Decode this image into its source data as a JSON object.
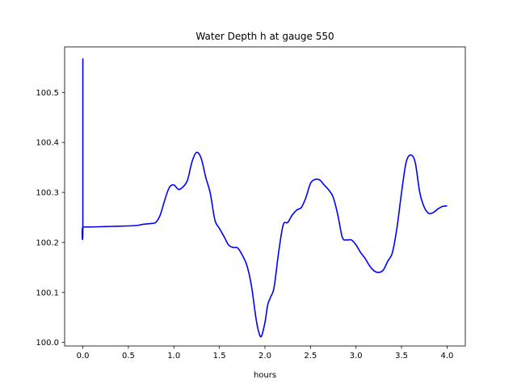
{
  "chart_data": {
    "type": "line",
    "title": "Water Depth h at gauge 550",
    "xlabel": "hours",
    "ylabel": "",
    "xlim": [
      -0.2,
      4.2
    ],
    "ylim": [
      99.993,
      100.591
    ],
    "xticks": [
      0.0,
      0.5,
      1.0,
      1.5,
      2.0,
      2.5,
      3.0,
      3.5,
      4.0
    ],
    "xtick_labels": [
      "0.0",
      "0.5",
      "1.0",
      "1.5",
      "2.0",
      "2.5",
      "3.0",
      "3.5",
      "4.0"
    ],
    "yticks": [
      100.0,
      100.1,
      100.2,
      100.3,
      100.4,
      100.5
    ],
    "ytick_labels": [
      "100.0",
      "100.1",
      "100.2",
      "100.3",
      "100.4",
      "100.5"
    ],
    "grid": false,
    "series": [
      {
        "color": "#0000ff",
        "x": [
          0.0,
          0.0,
          0.0,
          0.1,
          0.3,
          0.5,
          0.6,
          0.65,
          0.7,
          0.75,
          0.8,
          0.85,
          0.9,
          0.95,
          1.0,
          1.05,
          1.1,
          1.15,
          1.2,
          1.25,
          1.3,
          1.35,
          1.4,
          1.45,
          1.5,
          1.55,
          1.6,
          1.65,
          1.7,
          1.75,
          1.8,
          1.85,
          1.9,
          1.93,
          1.96,
          2.0,
          2.03,
          2.06,
          2.1,
          2.15,
          2.2,
          2.25,
          2.3,
          2.35,
          2.4,
          2.45,
          2.5,
          2.55,
          2.6,
          2.65,
          2.7,
          2.75,
          2.8,
          2.85,
          2.9,
          2.95,
          3.0,
          3.05,
          3.1,
          3.15,
          3.2,
          3.25,
          3.3,
          3.35,
          3.4,
          3.45,
          3.5,
          3.55,
          3.6,
          3.65,
          3.7,
          3.75,
          3.8,
          3.85,
          3.9,
          3.95,
          4.0
        ],
        "y": [
          100.568,
          100.231,
          100.231,
          100.231,
          100.232,
          100.233,
          100.234,
          100.236,
          100.237,
          100.238,
          100.24,
          100.255,
          100.285,
          100.31,
          100.315,
          100.306,
          100.311,
          100.325,
          100.362,
          100.38,
          100.368,
          100.33,
          100.298,
          100.245,
          100.228,
          100.212,
          100.195,
          100.19,
          100.189,
          100.175,
          100.155,
          100.115,
          100.05,
          100.022,
          100.012,
          100.04,
          100.075,
          100.09,
          100.11,
          100.18,
          100.235,
          100.24,
          100.255,
          100.265,
          100.27,
          100.29,
          100.318,
          100.326,
          100.325,
          100.315,
          100.305,
          100.29,
          100.255,
          100.21,
          100.205,
          100.205,
          100.195,
          100.18,
          100.168,
          100.153,
          100.143,
          100.14,
          100.145,
          100.163,
          100.18,
          100.23,
          100.3,
          100.36,
          100.375,
          100.36,
          100.3,
          100.27,
          100.258,
          100.26,
          100.267,
          100.272,
          100.273
        ]
      }
    ]
  }
}
